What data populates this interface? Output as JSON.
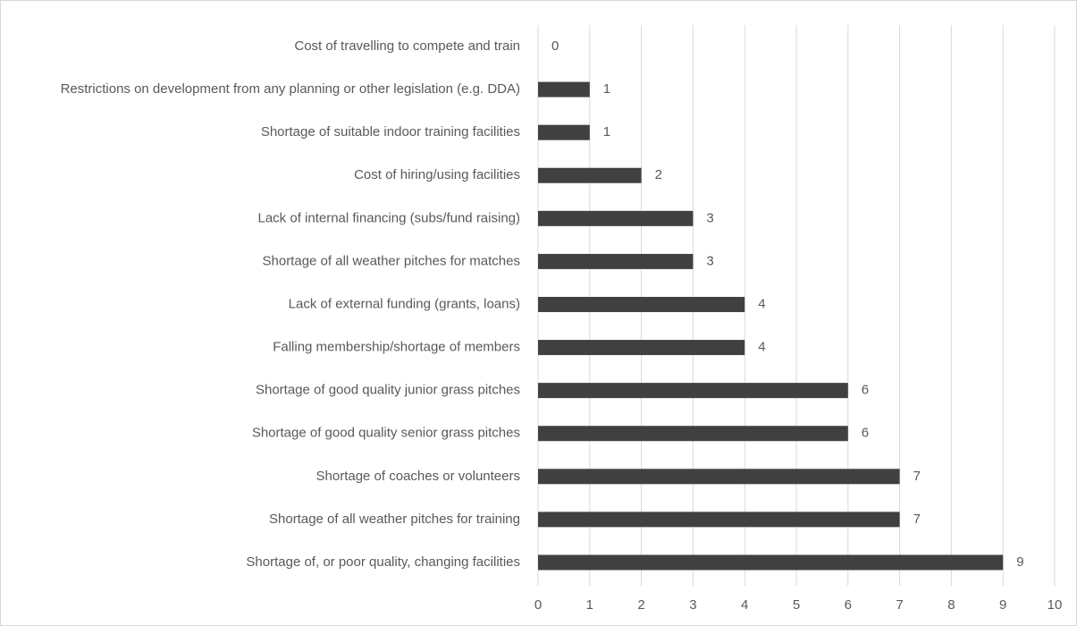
{
  "chart_data": {
    "type": "barh",
    "categories": [
      "Cost of travelling to compete and train",
      "Restrictions on development from any planning or other legislation (e.g. DDA)",
      "Shortage of suitable indoor training facilities",
      "Cost of hiring/using facilities",
      "Lack of internal financing (subs/fund raising)",
      "Shortage of all weather pitches for matches",
      "Lack of external funding (grants, loans)",
      "Falling membership/shortage of members",
      "Shortage of good quality junior grass pitches",
      "Shortage of good quality senior grass pitches",
      "Shortage of coaches or volunteers",
      "Shortage of all weather pitches for training",
      "Shortage of, or poor quality, changing facilities"
    ],
    "values": [
      0,
      1,
      1,
      2,
      3,
      3,
      4,
      4,
      6,
      6,
      7,
      7,
      9
    ],
    "color": "#404040",
    "xlim": [
      0,
      10
    ],
    "xticks": [
      0,
      1,
      2,
      3,
      4,
      5,
      6,
      7,
      8,
      9,
      10
    ],
    "grid": true
  }
}
